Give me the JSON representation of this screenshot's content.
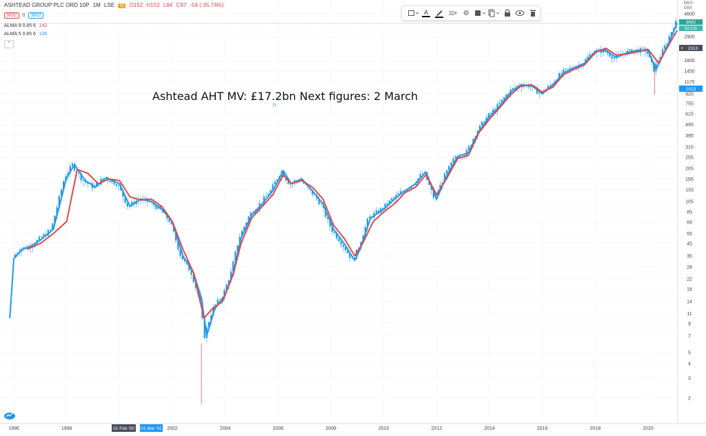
{
  "header": {
    "symbol": "ASHTEAD GROUP PLC ORD 10P",
    "interval": "1M",
    "exchange": "LSE",
    "d_badge": "D",
    "ohlc": {
      "o": "O152",
      "h": "H152",
      "l": "L84",
      "c": "C97",
      "change": "-54 (-35.74%)"
    },
    "price_box_left": "3832",
    "price_zero": "0",
    "price_box_right": "3832"
  },
  "indicators": [
    {
      "label": "ALMA 9 0.85 6",
      "value": "142",
      "color": "#e04848"
    },
    {
      "label": "ALMA 5 0.85 6",
      "value": "130",
      "color": "#2196f3"
    }
  ],
  "toolbar": {
    "font_size": "32",
    "icons": [
      "rectangle-icon",
      "text-color-icon",
      "pen-icon",
      "font-size-select",
      "gear-icon",
      "template-icon",
      "clone-icon",
      "lock-icon",
      "eye-icon",
      "trash-icon"
    ]
  },
  "annotation": "Ashtead AHT MV: £17.2bn Next figures: 2 March",
  "price_axis": {
    "labels": [
      "4600",
      "2900",
      "1800",
      "1450",
      "1170",
      "920",
      "755",
      "615",
      "495",
      "395",
      "315",
      "255",
      "205",
      "165",
      "133",
      "105",
      "85",
      "69",
      "55",
      "45",
      "35",
      "28",
      "22",
      "18",
      "14",
      "11",
      "9",
      "7",
      "5",
      "4",
      "3",
      "2"
    ],
    "top_labels": [
      "5800",
      "GBX"
    ],
    "last_price": "3832",
    "last_sub": "5d 21h",
    "crosshair_price": "2313",
    "blue_price": "1013"
  },
  "time_axis": {
    "labels": [
      "1996",
      "1998",
      "2000",
      "2002",
      "2004",
      "2006",
      "2008",
      "2010",
      "2012",
      "2014",
      "2016",
      "2018",
      "2020"
    ],
    "highlight_dark": "01 Feb '00",
    "highlight_blue": "01 Mar '01"
  },
  "colors": {
    "up": "#26a69a",
    "candle": "#1e9bd7",
    "ma_red": "#e04848",
    "ma_blue": "#2196f3",
    "grid": "#f0f3fa"
  },
  "chart_data": {
    "type": "line",
    "title": "Ashtead AHT MV: £17.2bn Next figures: 2 March",
    "xlabel": "",
    "ylabel": "",
    "scale": "log",
    "ylim": [
      1.6,
      5800
    ],
    "xlim": [
      1995.75,
      2021.2
    ],
    "series": [
      {
        "name": "ALMA 9 0.85 6",
        "x": [
          1996.5,
          1997,
          1997.5,
          1998,
          1998.4,
          1998.8,
          1999.2,
          1999.6,
          2000,
          2000.4,
          2000.8,
          2001.2,
          2001.6,
          2002,
          2002.4,
          2002.8,
          2003.2,
          2003.5,
          2003.9,
          2004.3,
          2004.6,
          2005,
          2005.4,
          2005.8,
          2006.2,
          2006.5,
          2006.9,
          2007.3,
          2007.7,
          2008.1,
          2008.5,
          2008.9,
          2009.2,
          2009.6,
          2010,
          2010.4,
          2010.8,
          2011.2,
          2011.6,
          2012,
          2012.4,
          2012.8,
          2013.2,
          2013.6,
          2014,
          2014.4,
          2014.8,
          2015.2,
          2015.6,
          2016,
          2016.4,
          2016.8,
          2017.2,
          2017.6,
          2018,
          2018.4,
          2018.8,
          2019.2,
          2019.6,
          2020,
          2020.4,
          2020.8,
          2021.1
        ],
        "values": [
          40,
          45,
          55,
          70,
          200,
          185,
          150,
          165,
          160,
          115,
          108,
          110,
          95,
          70,
          40,
          25,
          10,
          12,
          14,
          24,
          45,
          75,
          95,
          120,
          180,
          150,
          160,
          140,
          110,
          65,
          50,
          35,
          45,
          70,
          85,
          100,
          125,
          140,
          180,
          120,
          170,
          250,
          265,
          420,
          550,
          700,
          900,
          1080,
          1100,
          950,
          1050,
          1350,
          1500,
          1650,
          2100,
          2300,
          2000,
          2050,
          2150,
          2250,
          1700,
          2500,
          3300
        ]
      },
      {
        "name": "ALMA 5 0.85 6",
        "x": [
          1995.85,
          1996.0,
          1996.3,
          1996.6,
          1997,
          1997.5,
          1998,
          1998.3,
          1998.7,
          1999.1,
          1999.5,
          2000,
          2000.4,
          2000.8,
          2001.2,
          2001.6,
          2002,
          2002.4,
          2002.8,
          2003.1,
          2003.3,
          2003.6,
          2004,
          2004.3,
          2004.6,
          2005,
          2005.4,
          2005.8,
          2006.2,
          2006.5,
          2006.9,
          2007.3,
          2007.7,
          2008.1,
          2008.5,
          2008.9,
          2009.1,
          2009.5,
          2010,
          2010.4,
          2010.8,
          2011.2,
          2011.6,
          2012,
          2012.4,
          2012.8,
          2013.2,
          2013.6,
          2014,
          2014.4,
          2014.8,
          2015.2,
          2015.6,
          2016,
          2016.4,
          2016.8,
          2017.2,
          2017.6,
          2018,
          2018.4,
          2018.8,
          2019.2,
          2019.6,
          2020,
          2020.3,
          2020.8,
          2021.1
        ],
        "values": [
          10,
          33,
          40,
          42,
          48,
          60,
          170,
          220,
          160,
          140,
          170,
          150,
          95,
          110,
          105,
          90,
          70,
          35,
          25,
          15,
          7,
          12,
          16,
          25,
          50,
          80,
          100,
          130,
          195,
          150,
          165,
          130,
          100,
          60,
          45,
          32,
          40,
          75,
          90,
          110,
          130,
          150,
          190,
          110,
          180,
          260,
          280,
          430,
          580,
          720,
          950,
          1100,
          1080,
          920,
          1100,
          1400,
          1550,
          1700,
          2150,
          2200,
          1900,
          2100,
          2200,
          2200,
          1500,
          2600,
          3832
        ]
      }
    ]
  }
}
